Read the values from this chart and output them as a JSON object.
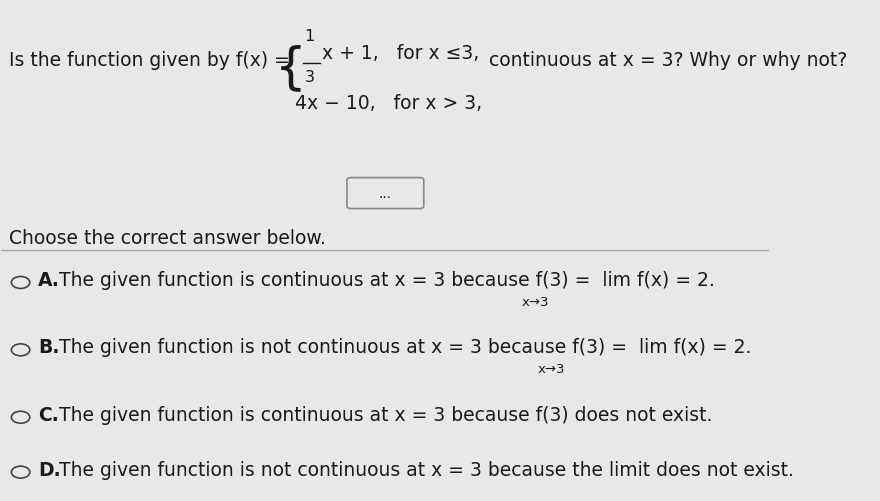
{
  "bg_color": "#e8e8e8",
  "text_color": "#1a1a1a",
  "question_line1": "Is the function given by f(x) =",
  "piecewise_line1_num": "1",
  "piecewise_line1_frac": "–x + 1,",
  "piecewise_line1_cond": "for x ≤3,",
  "piecewise_line2": "4x − 10,   for x > 3,",
  "question_end": "continuous at x = 3? Why or why not?",
  "choose_text": "Choose the correct answer below.",
  "option_A_label": "A.",
  "option_A_text": "The given function is continuous at x = 3 because f(3) =  lim f(x) = 2.",
  "option_A_sub": "x→3",
  "option_B_label": "B.",
  "option_B_text": "The given function is not continuous at x = 3 because f(3) =  lim f(x) = 2.",
  "option_B_sub": "x→3",
  "option_C_label": "C.",
  "option_C_text": "The given function is continuous at x = 3 because f(3) does not exist.",
  "option_D_label": "D.",
  "option_D_text": "The given function is not continuous at x = 3 because the limit does not exist.",
  "dots_text": "...",
  "font_size_main": 13.5,
  "font_size_small": 11.5,
  "font_size_sub": 9.5
}
